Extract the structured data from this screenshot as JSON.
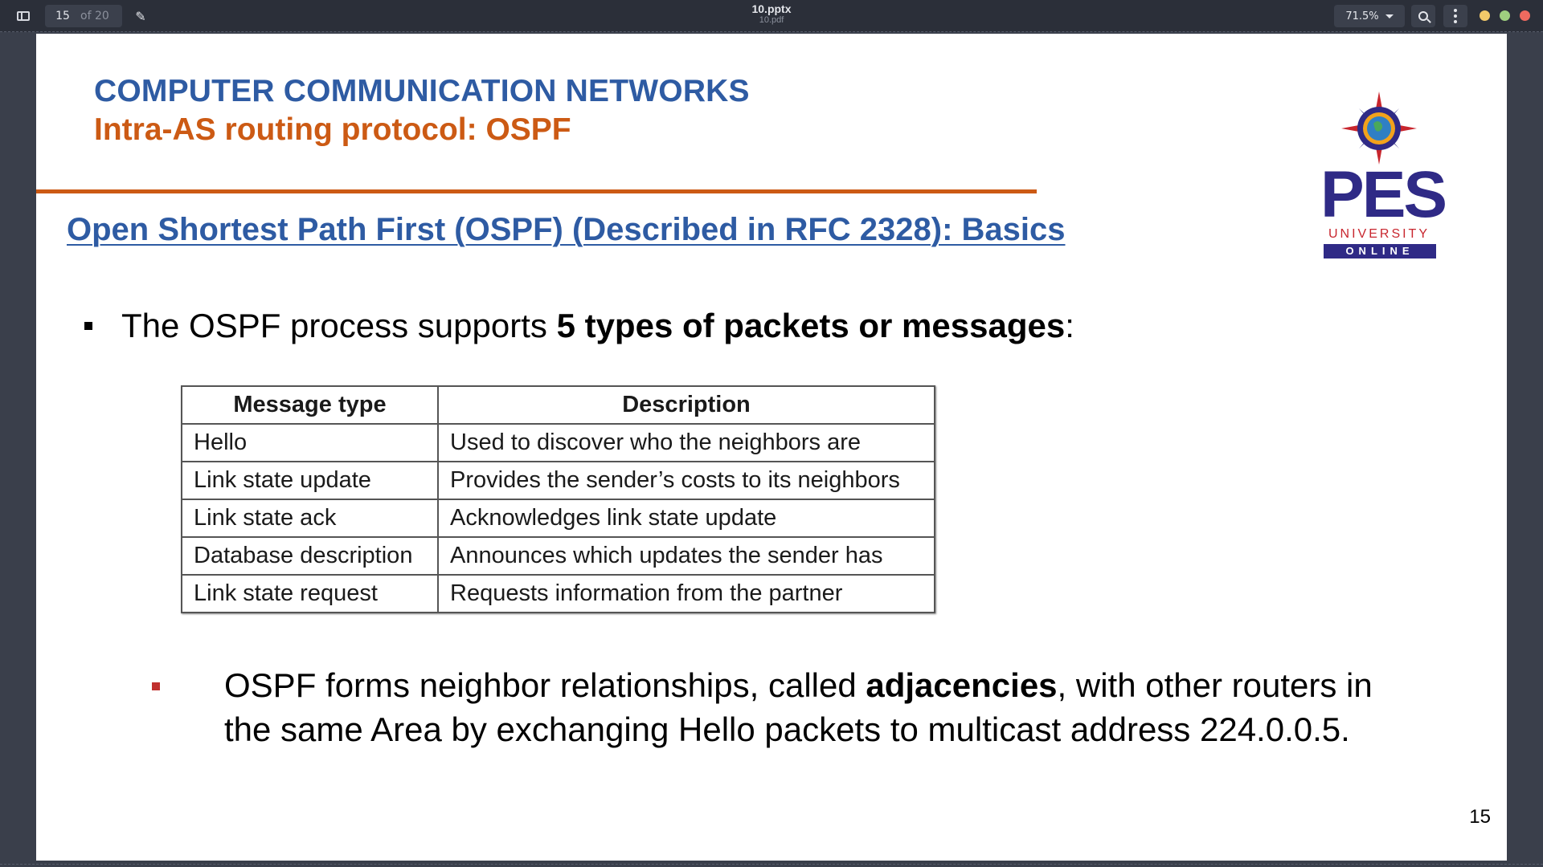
{
  "toolbar": {
    "current_page": "15",
    "page_of": "of 20",
    "doc_title": "10.pptx",
    "doc_subtitle": "10.pdf",
    "zoom": "71.5%",
    "icons": [
      "sidebar-icon",
      "pencil-icon",
      "chevron-down-icon",
      "search-icon",
      "more-vertical-icon"
    ],
    "window_controls": [
      "#f3c969",
      "#9fd07f",
      "#ef6a5f"
    ]
  },
  "slide": {
    "course_title": "COMPUTER COMMUNICATION NETWORKS",
    "topic_title": "Intra-AS routing protocol: OSPF",
    "section_heading": "Open Shortest Path First (OSPF) (Described in RFC 2328): Basics",
    "logo": {
      "name": "PES",
      "line2": "UNIVERSITY",
      "line3": "ONLINE"
    },
    "bullet1": {
      "prefix": "The OSPF process supports ",
      "bold": "5 types of packets or messages",
      "suffix": ":"
    },
    "table": {
      "headers": [
        "Message type",
        "Description"
      ],
      "rows": [
        [
          "Hello",
          "Used to discover who the neighbors are"
        ],
        [
          "Link state update",
          "Provides the sender’s costs to its neighbors"
        ],
        [
          "Link state ack",
          "Acknowledges link state update"
        ],
        [
          "Database description",
          "Announces which updates the sender has"
        ],
        [
          "Link state request",
          "Requests information from the partner"
        ]
      ]
    },
    "bullet2": {
      "prefix": "OSPF forms neighbor relationships, called ",
      "bold": "adjacencies",
      "suffix": ", with other routers in the same Area by exchanging Hello packets to multicast address 224.0.0.5."
    },
    "page_number": "15",
    "colors": {
      "title_blue": "#2e5ba3",
      "accent_orange": "#cc5a14",
      "logo_navy": "#2f2a86",
      "logo_red": "#c8262e"
    }
  }
}
